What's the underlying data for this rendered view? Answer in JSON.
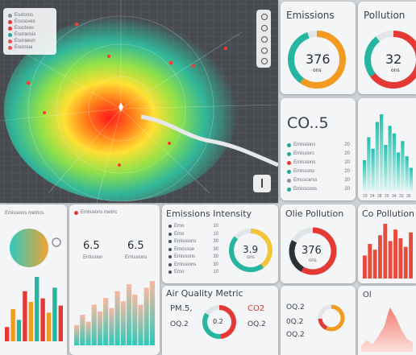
{
  "map": {
    "legend": [
      {
        "label": "Esxloros",
        "color": "#8a8f96"
      },
      {
        "label": "Esxsoves",
        "color": "#e53935"
      },
      {
        "label": "Esxcleas",
        "color": "#e53935"
      },
      {
        "label": "Esoraosis",
        "color": "#26a69a"
      },
      {
        "label": "Esoraeun",
        "color": "#ef5350"
      },
      {
        "label": "Esoroua",
        "color": "#ef5350"
      }
    ],
    "controls": [
      "zoom-in",
      "zoom-out",
      "layers",
      "location",
      "settings"
    ]
  },
  "emissions_card": {
    "title": "Emissions",
    "value": "376",
    "unit": "ons"
  },
  "pollution_card": {
    "title": "Pollution",
    "value": "32",
    "unit": "ons"
  },
  "co_card": {
    "title": "CO..5",
    "list": [
      {
        "label": "Emissions",
        "value": "20"
      },
      {
        "label": "Emissiors",
        "value": "20"
      },
      {
        "label": "Emissions",
        "value": "20"
      },
      {
        "label": "Emissons",
        "value": "20"
      },
      {
        "label": "Emsscarss",
        "value": "20"
      },
      {
        "label": "Emisscoos",
        "value": "20"
      }
    ]
  },
  "bars_right": {
    "values": [
      40,
      70,
      55,
      90,
      100,
      60,
      85,
      75,
      50,
      65,
      45,
      30
    ],
    "axis": [
      "20",
      "24",
      "28",
      "29",
      "34",
      "33",
      "36"
    ]
  },
  "bottom_left": {
    "title": "Emissions metrics",
    "bars": [
      20,
      45,
      30,
      70,
      55,
      90,
      60,
      40,
      75,
      50
    ]
  },
  "mini_card": {
    "title": "Emissions metric",
    "v1": "6.5",
    "v2": "6.5",
    "l1": "Emission",
    "l2": "Emissions"
  },
  "intensity_card": {
    "title": "Emissions  Intensity",
    "value": "3.9",
    "unit": "ons",
    "list": [
      {
        "label": "Emo",
        "value": "10"
      },
      {
        "label": "Emo",
        "value": "10"
      },
      {
        "label": "Emissions",
        "value": "30"
      },
      {
        "label": "Emossoe",
        "value": "30"
      },
      {
        "label": "Emissons",
        "value": "30"
      },
      {
        "label": "Emissions",
        "value": "30"
      },
      {
        "label": "Emo",
        "value": "10"
      }
    ]
  },
  "olie_card": {
    "title": "Olie Pollution",
    "value": "376",
    "unit": "ons"
  },
  "co_pollution_card": {
    "title": "Co Pollution",
    "bars": [
      40,
      60,
      50,
      75,
      95,
      65,
      85,
      70,
      55,
      80
    ]
  },
  "air_quality": {
    "title": "Air Quality Metric",
    "pm": "PM.5,",
    "pm_val": "OQ.2",
    "gauge": "0.2",
    "co2": "CO2",
    "co2_val": "OQ.2"
  },
  "bottom_mid": {
    "a": "OQ.2",
    "b": "0Q.2",
    "c": "OQ.2"
  },
  "bottom_right": {
    "label": "Ol",
    "area": [
      10,
      18,
      12,
      25,
      40,
      70,
      55,
      35,
      20,
      15
    ]
  }
}
